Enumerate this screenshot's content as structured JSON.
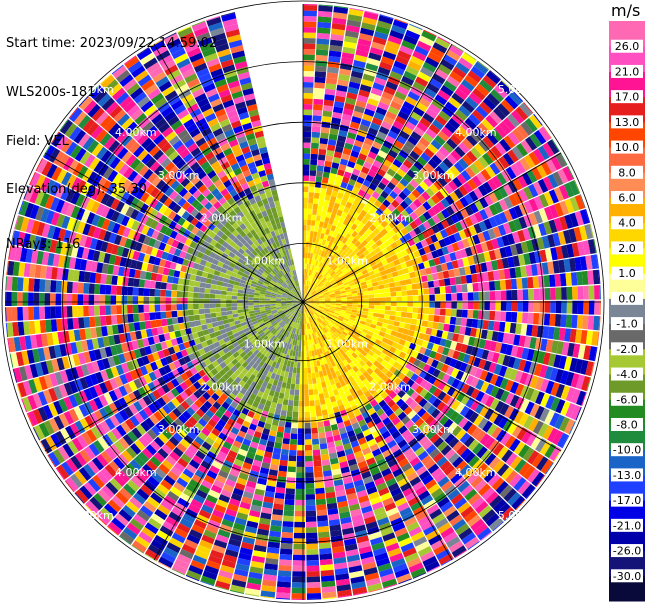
{
  "header": {
    "start_time": "Start time: 2023/09/22 14:59:02",
    "instrument": "WLS200s-181",
    "field": "Field: VEL",
    "elevation": "Elevation(deg): 35.30",
    "nrays": "NRays: 116"
  },
  "colorbar": {
    "unit": "m/s",
    "colors": [
      "#0a0a3a",
      "#141478",
      "#0000aa",
      "#0000e6",
      "#2040ff",
      "#1a64c8",
      "#1e8c3c",
      "#228b22",
      "#6e9a2a",
      "#a6c833",
      "#696969",
      "#7a8696",
      "#ffff99",
      "#ffff00",
      "#ffd700",
      "#ffb000",
      "#ff8c55",
      "#ff6a40",
      "#ff4500",
      "#e61e1e",
      "#ff1493",
      "#ff4fc1",
      "#ff69b4"
    ],
    "ticks": [
      "-30.0",
      "-26.0",
      "-21.0",
      "-17.0",
      "-13.0",
      "-10.0",
      "-8.0",
      "-6.0",
      "-4.0",
      "-2.0",
      "-1.0",
      "0.0",
      "1.0",
      "2.0",
      "4.0",
      "6.0",
      "8.0",
      "10.0",
      "13.0",
      "17.0",
      "21.0",
      "26.0"
    ]
  },
  "chart_data": {
    "type": "heatmap",
    "projection": "polar PPI",
    "field": "VEL",
    "units": "m/s",
    "elevation_deg": 35.3,
    "nrays": 116,
    "range_ring_labels": [
      "1.00km",
      "2.00km",
      "3.00km",
      "4.00km",
      "5.00km"
    ],
    "range_km": [
      0,
      5.9
    ],
    "clear_sector_deg": [
      -13,
      0
    ],
    "near_field": {
      "max_range_km": 2.2,
      "west_half_values_m_s": [
        -6,
        -3,
        -1
      ],
      "east_half_values_m_s": [
        1,
        2,
        5
      ]
    },
    "far_field": "noise, full color range -30 to 26 m/s"
  }
}
